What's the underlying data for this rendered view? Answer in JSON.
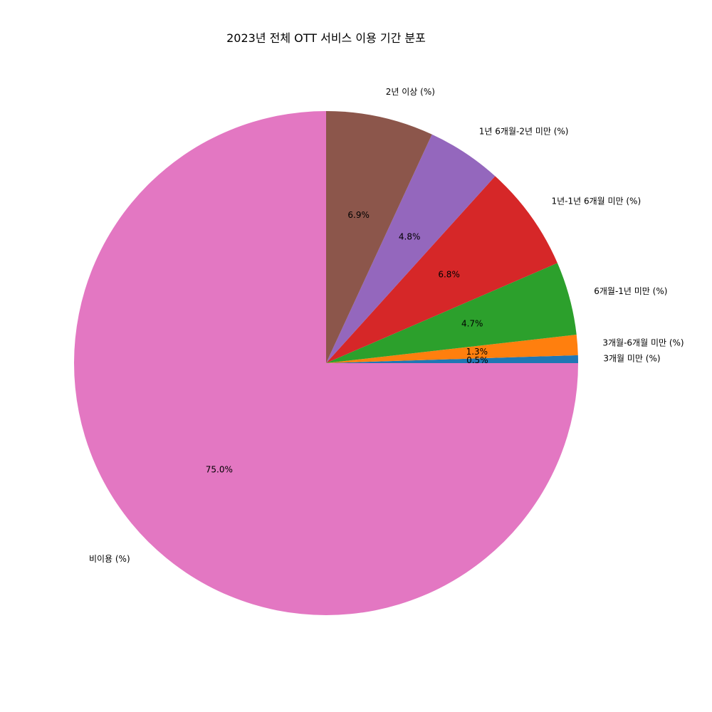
{
  "chart_data": {
    "type": "pie",
    "title": "2023년 전체 OTT 서비스 이용 기간 분포",
    "start_angle_deg": 0,
    "direction": "counterclockwise",
    "slices": [
      {
        "label": "3개월 미만 (%)",
        "value": 0.5,
        "pct_label": "0.5%",
        "color": "#1f77b4"
      },
      {
        "label": "3개월-6개월 미만 (%)",
        "value": 1.3,
        "pct_label": "1.3%",
        "color": "#ff7f0e"
      },
      {
        "label": "6개월-1년 미만 (%)",
        "value": 4.7,
        "pct_label": "4.7%",
        "color": "#2ca02c"
      },
      {
        "label": "1년-1년 6개월 미만 (%)",
        "value": 6.8,
        "pct_label": "6.8%",
        "color": "#d62728"
      },
      {
        "label": "1년 6개월-2년 미만 (%)",
        "value": 4.8,
        "pct_label": "4.8%",
        "color": "#9467bd"
      },
      {
        "label": "2년 이상 (%)",
        "value": 6.9,
        "pct_label": "6.9%",
        "color": "#8c564b"
      },
      {
        "label": "비이용 (%)",
        "value": 75.0,
        "pct_label": "75.0%",
        "color": "#e377c2"
      }
    ]
  }
}
